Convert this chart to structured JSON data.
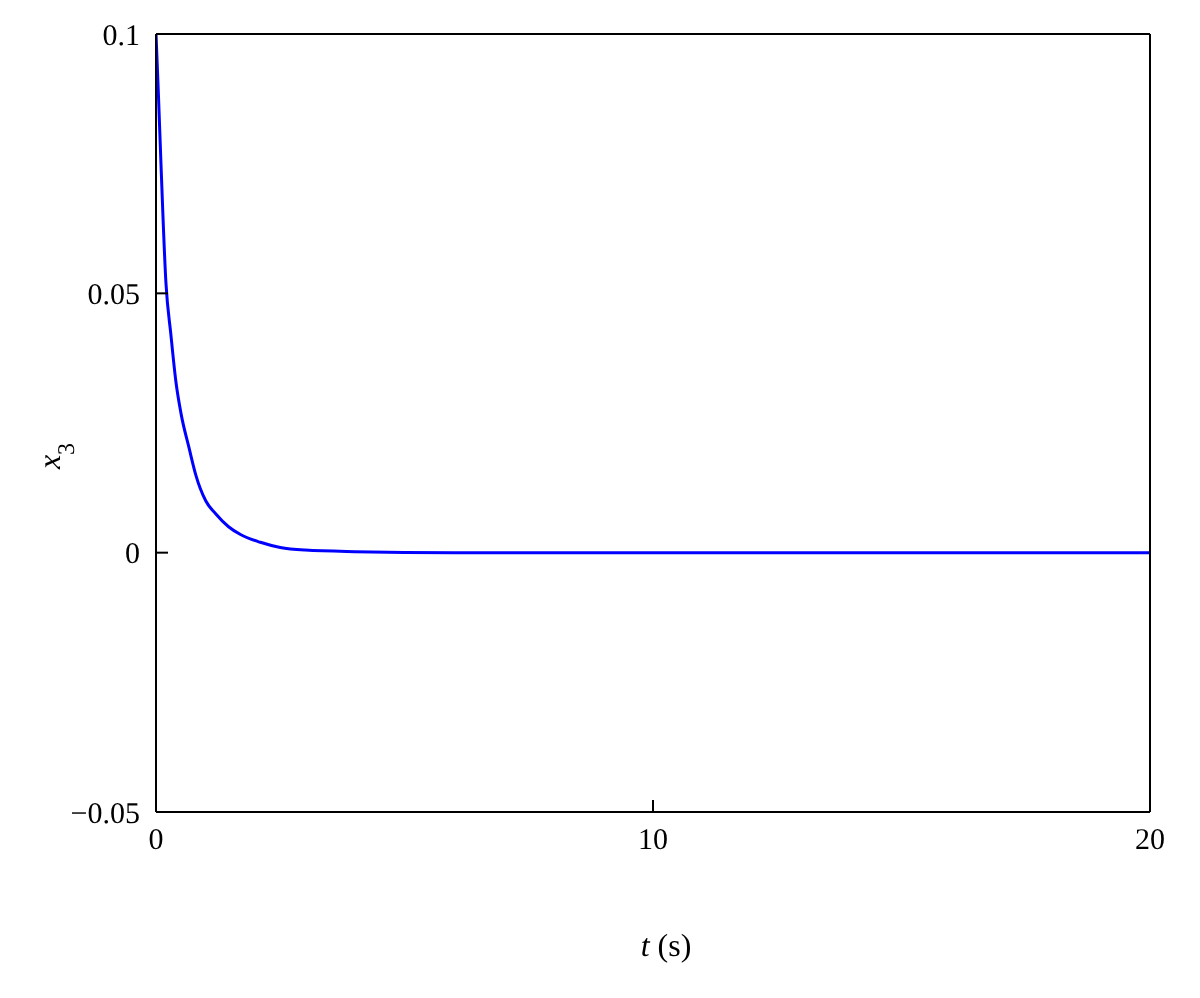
{
  "chart_data": {
    "type": "line",
    "xlabel": "t (s)",
    "ylabel": "x$_{3}$",
    "x": [
      0,
      0.05,
      0.1,
      0.2,
      0.3,
      0.4,
      0.5,
      0.67,
      0.8,
      1.0,
      1.2,
      1.46,
      1.7,
      2.1,
      2.5,
      3.0,
      4,
      6,
      10,
      15,
      20
    ],
    "series": [
      {
        "color": "#0000ff",
        "values": [
          0.1,
          0.088,
          0.075,
          0.052,
          0.042,
          0.033,
          0.027,
          0.02,
          0.015,
          0.01,
          0.0075,
          0.005,
          0.0035,
          0.002,
          0.001,
          0.0005,
          0.0002,
          0,
          0,
          0,
          0
        ]
      }
    ],
    "xlim": [
      0,
      20
    ],
    "xticks": [
      0,
      10,
      20
    ],
    "ylim": [
      -0.05,
      0.1
    ],
    "yticks": [
      -0.05,
      0,
      0.05,
      0.1
    ],
    "grid": false,
    "marker": "none",
    "line_style": "solid"
  }
}
